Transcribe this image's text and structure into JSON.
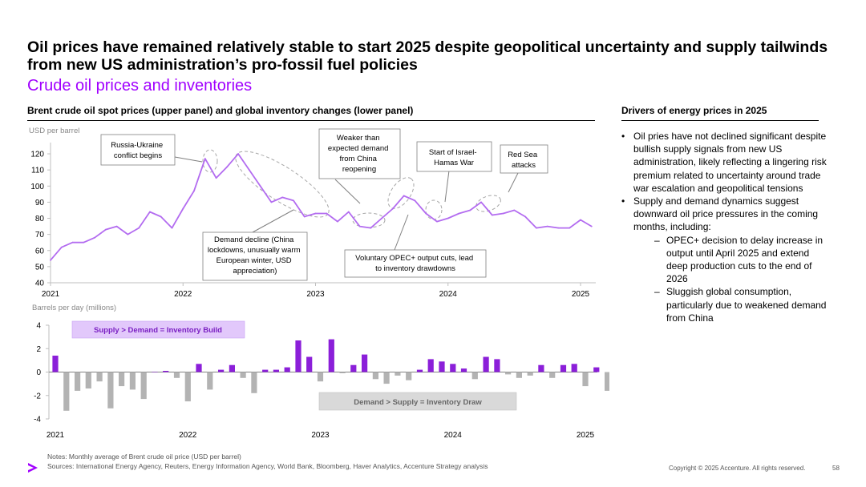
{
  "title": "Oil prices have remained relatively stable to start 2025 despite geopolitical uncertainty and supply tailwinds from new US administration’s pro-fossil fuel policies",
  "subtitle": "Crude oil prices and inventories",
  "left_panel_title": "Brent crude oil spot prices (upper panel) and global inventory changes (lower panel)",
  "right_panel_title": "Drivers of energy prices in 2025",
  "drivers": {
    "b1": "Oil pries have not declined significant despite bullish supply signals from new US administration, likely reflecting a lingering risk premium related to uncertainty around trade war escalation and geopolitical tensions",
    "b2": "Supply and demand dynamics suggest downward oil price pressures in the coming months, including:",
    "s1": "OPEC+ decision to delay increase in output until April 2025 and extend deep production cuts to the end of 2026",
    "s2": "Sluggish global consumption, particularly due to weakened demand from China"
  },
  "notes": {
    "line1": "Notes: Monthly average of Brent crude oil price (USD per barrel)",
    "line2": "Sources: International Energy Agency, Reuters, Energy Information Agency, World Bank, Bloomberg, Haver Analytics, Accenture Strategy analysis"
  },
  "footer": {
    "copyright": "Copyright © 2025 Accenture. All rights reserved.",
    "page": "58"
  },
  "colors": {
    "accent": "#a100ff",
    "line": "#b36cf0",
    "bar_pos": "#8b1fd9",
    "bar_neg": "#b3b3b3",
    "callout_build_bg": "#e2c8fb",
    "callout_draw_bg": "#d9d9d9"
  },
  "chart_data": [
    {
      "type": "line",
      "name": "Brent crude oil spot price",
      "ylabel": "USD per barrel",
      "ylim": [
        40,
        125
      ],
      "yticks": [
        40,
        50,
        60,
        70,
        80,
        90,
        100,
        110,
        120
      ],
      "xticks": [
        "2021",
        "2022",
        "2023",
        "2024",
        "2025"
      ],
      "start": "2021-01",
      "values": [
        54,
        62,
        65,
        65,
        68,
        73,
        75,
        70,
        74,
        84,
        81,
        74,
        86,
        97,
        117,
        105,
        112,
        120,
        110,
        100,
        90,
        93,
        91,
        81,
        83,
        83,
        78,
        84,
        75,
        74,
        80,
        86,
        94,
        91,
        83,
        78,
        80,
        83,
        85,
        90,
        82,
        83,
        85,
        81,
        74,
        75,
        74,
        74,
        79,
        75
      ],
      "annotations": [
        {
          "label": "Russia-Ukraine conflict begins"
        },
        {
          "label": "Demand decline (China lockdowns, unusually warm European winter, USD appreciation)"
        },
        {
          "label": "Weaker than expected demand from China reopening"
        },
        {
          "label": "Voluntary OPEC+ output cuts, lead to inventory drawdowns"
        },
        {
          "label": "Start of Israel-Hamas War"
        },
        {
          "label": "Red Sea attacks"
        }
      ]
    },
    {
      "type": "bar",
      "name": "Global inventory changes",
      "ylabel": "Barrels per day (millions)",
      "ylim": [
        -4,
        4
      ],
      "yticks": [
        4,
        2,
        0,
        -2,
        -4
      ],
      "xticks": [
        "2021",
        "2022",
        "2023",
        "2024",
        "2025"
      ],
      "start": "2021-01",
      "values": [
        1.4,
        -3.3,
        -1.6,
        -1.4,
        -0.8,
        -3.1,
        -1.2,
        -1.5,
        -2.3,
        0.0,
        0.1,
        -0.5,
        -2.5,
        0.7,
        -1.5,
        0.2,
        0.6,
        -0.5,
        -1.8,
        0.2,
        0.2,
        0.4,
        2.7,
        1.3,
        -0.8,
        2.8,
        -0.1,
        0.6,
        1.5,
        -0.6,
        -1.0,
        -0.3,
        -0.7,
        0.2,
        1.1,
        0.9,
        0.7,
        0.3,
        -0.6,
        1.3,
        1.1,
        -0.2,
        -0.5,
        -0.3,
        0.6,
        -0.5,
        0.6,
        0.7,
        -1.2,
        0.4,
        -1.6
      ],
      "callouts": [
        {
          "label": "Supply > Demand = Inventory Build"
        },
        {
          "label": "Demand > Supply = Inventory Draw"
        }
      ]
    }
  ]
}
